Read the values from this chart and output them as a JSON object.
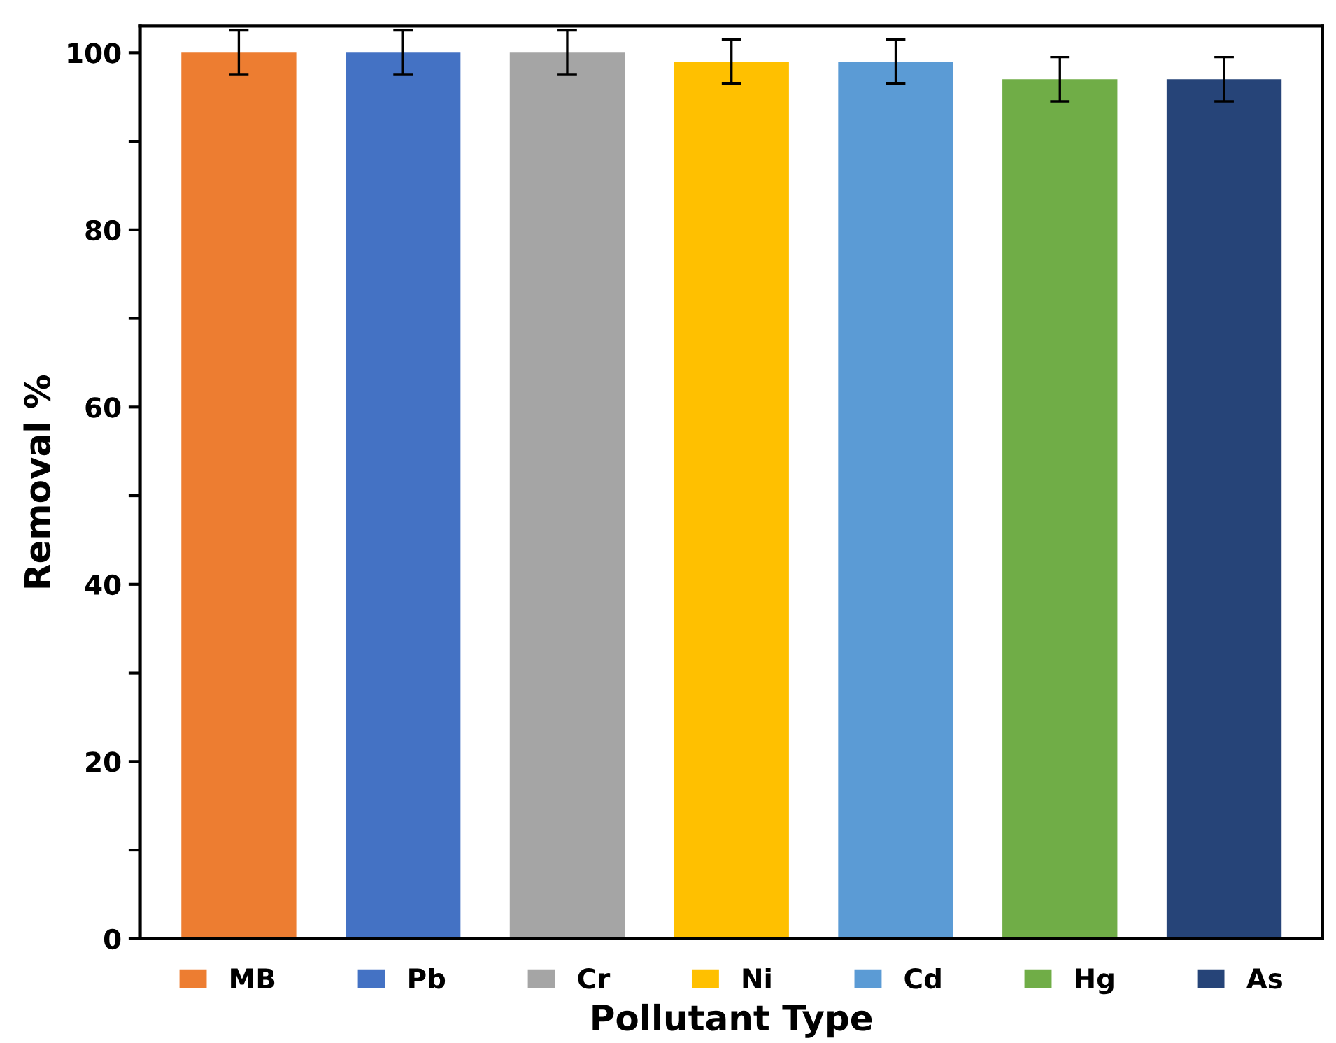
{
  "chart_data": {
    "type": "bar",
    "xlabel": "Pollutant Type",
    "ylabel": "Removal %",
    "categories": [
      null,
      null,
      null,
      null,
      null,
      null,
      null
    ],
    "series": [
      {
        "name": "MB",
        "color": "#ed7d31",
        "values": [
          100,
          null,
          null,
          null,
          null,
          null,
          null
        ],
        "errors": [
          2.5,
          null,
          null,
          null,
          null,
          null,
          null
        ]
      },
      {
        "name": "Pb",
        "color": "#4472c4",
        "values": [
          null,
          100,
          null,
          null,
          null,
          null,
          null
        ],
        "errors": [
          null,
          2.5,
          null,
          null,
          null,
          null,
          null
        ]
      },
      {
        "name": "Cr",
        "color": "#a5a5a5",
        "values": [
          null,
          null,
          100,
          null,
          null,
          null,
          null
        ],
        "errors": [
          null,
          null,
          2.5,
          null,
          null,
          null,
          null
        ]
      },
      {
        "name": "Ni",
        "color": "#ffc000",
        "values": [
          null,
          null,
          null,
          99,
          null,
          null,
          null
        ],
        "errors": [
          null,
          null,
          null,
          2.5,
          null,
          null,
          null
        ]
      },
      {
        "name": "Cd",
        "color": "#5b9bd5",
        "values": [
          null,
          null,
          null,
          null,
          99,
          null,
          null
        ],
        "errors": [
          null,
          null,
          null,
          null,
          2.5,
          null,
          null
        ]
      },
      {
        "name": "Hg",
        "color": "#70ad47",
        "values": [
          null,
          null,
          null,
          null,
          null,
          97,
          null
        ],
        "errors": [
          null,
          null,
          null,
          null,
          null,
          2.5,
          null
        ]
      },
      {
        "name": "As",
        "color": "#264478",
        "values": [
          null,
          null,
          null,
          null,
          null,
          null,
          97
        ],
        "errors": [
          null,
          null,
          null,
          null,
          null,
          null,
          2.5
        ]
      }
    ],
    "ylim": [
      0,
      103
    ],
    "yticks": [
      0,
      {
        "value": 10,
        "label": null
      },
      20,
      {
        "value": 30,
        "label": null
      },
      40,
      {
        "value": 50,
        "label": null
      },
      60,
      {
        "value": 70,
        "label": null
      },
      80,
      {
        "value": 90,
        "label": null
      },
      100
    ],
    "grid": false,
    "legend": "bottom"
  }
}
